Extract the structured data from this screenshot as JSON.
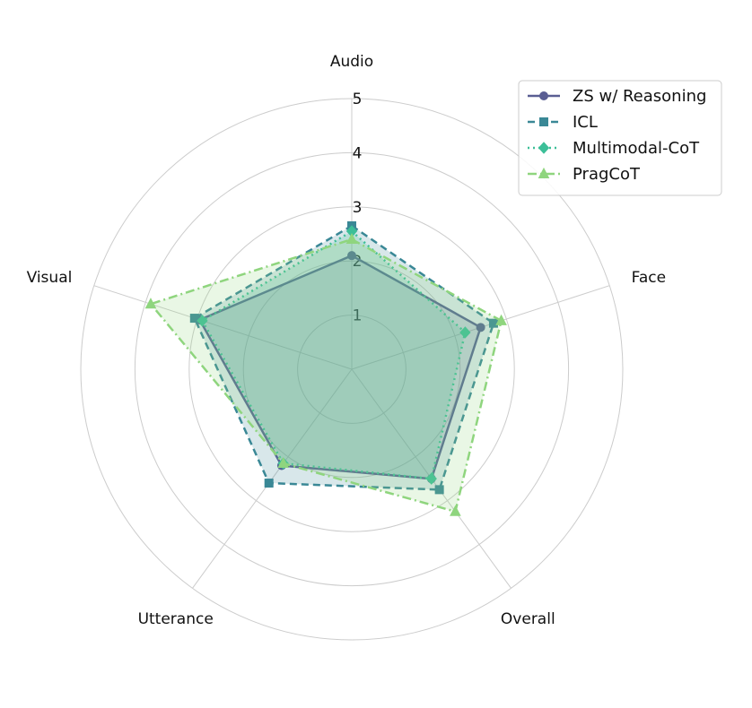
{
  "chart_data": {
    "type": "radar",
    "axes": [
      "Audio",
      "Face",
      "Overall",
      "Utterance",
      "Visual"
    ],
    "r_ticks": [
      "1",
      "2",
      "3",
      "4",
      "5"
    ],
    "rlim": [
      0,
      5
    ],
    "grid": true,
    "legend_position": "top-right",
    "series": [
      {
        "name": "ZS w/ Reasoning",
        "values": [
          2.1,
          2.5,
          2.5,
          2.2,
          2.95
        ],
        "color": "#5a5e93",
        "line": "solid",
        "marker": "circle"
      },
      {
        "name": "ICL",
        "values": [
          2.65,
          2.75,
          2.75,
          2.6,
          3.05
        ],
        "color": "#3a8896",
        "line": "dashed",
        "marker": "square"
      },
      {
        "name": "Multimodal-CoT",
        "values": [
          2.55,
          2.2,
          2.5,
          2.15,
          2.9
        ],
        "color": "#3cbf98",
        "line": "dotted",
        "marker": "diamond"
      },
      {
        "name": "PragCoT",
        "values": [
          2.4,
          2.9,
          3.25,
          2.15,
          3.9
        ],
        "color": "#8fd57e",
        "line": "dashdot",
        "marker": "triangle"
      }
    ]
  }
}
